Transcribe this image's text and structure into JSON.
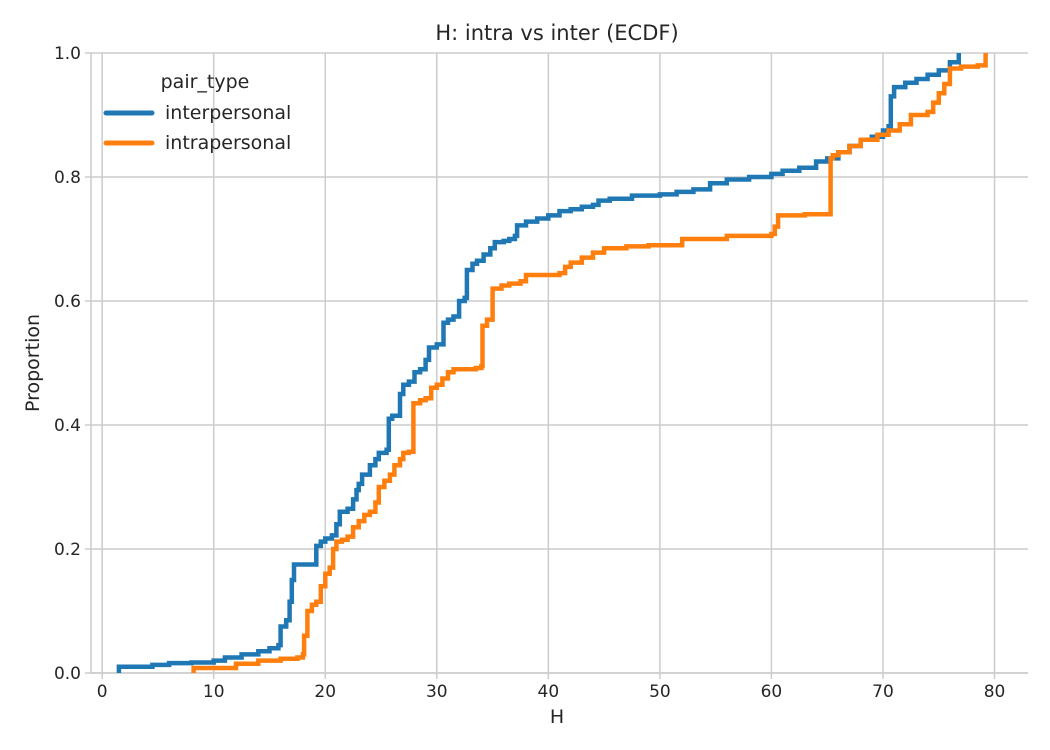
{
  "chart_data": {
    "type": "line",
    "subtype": "ecdf-step",
    "title": "H: intra vs inter (ECDF)",
    "xlabel": "H",
    "ylabel": "Proportion",
    "xlim": [
      -1,
      83
    ],
    "ylim": [
      0,
      1
    ],
    "xticks": [
      0,
      10,
      20,
      30,
      40,
      50,
      60,
      70,
      80
    ],
    "yticks": [
      0.0,
      0.2,
      0.4,
      0.6,
      0.8,
      1.0
    ],
    "xtick_labels": [
      "0",
      "10",
      "20",
      "30",
      "40",
      "50",
      "60",
      "70",
      "80"
    ],
    "ytick_labels": [
      "0.0",
      "0.2",
      "0.4",
      "0.6",
      "0.8",
      "1.0"
    ],
    "grid": true,
    "legend": {
      "title": "pair_type",
      "placement": "top-left"
    },
    "series": [
      {
        "name": "interpersonal",
        "color": "#1f77b4",
        "points": [
          [
            1.5,
            0.0
          ],
          [
            1.5,
            0.01
          ],
          [
            3.5,
            0.01
          ],
          [
            4.5,
            0.013
          ],
          [
            6,
            0.016
          ],
          [
            8,
            0.017
          ],
          [
            10,
            0.02
          ],
          [
            11,
            0.025
          ],
          [
            12.5,
            0.03
          ],
          [
            14,
            0.035
          ],
          [
            15,
            0.04
          ],
          [
            15.8,
            0.045
          ],
          [
            16.0,
            0.075
          ],
          [
            16.5,
            0.085
          ],
          [
            16.8,
            0.115
          ],
          [
            17.0,
            0.15
          ],
          [
            17.2,
            0.175
          ],
          [
            19.0,
            0.175
          ],
          [
            19.2,
            0.205
          ],
          [
            19.6,
            0.212
          ],
          [
            20.0,
            0.217
          ],
          [
            20.6,
            0.222
          ],
          [
            21.0,
            0.24
          ],
          [
            21.3,
            0.26
          ],
          [
            22.0,
            0.265
          ],
          [
            22.5,
            0.28
          ],
          [
            22.8,
            0.295
          ],
          [
            23.0,
            0.305
          ],
          [
            23.3,
            0.32
          ],
          [
            24.0,
            0.335
          ],
          [
            24.5,
            0.345
          ],
          [
            24.8,
            0.355
          ],
          [
            25.5,
            0.36
          ],
          [
            25.7,
            0.41
          ],
          [
            26.0,
            0.415
          ],
          [
            26.5,
            0.415
          ],
          [
            26.7,
            0.45
          ],
          [
            27.0,
            0.465
          ],
          [
            27.5,
            0.47
          ],
          [
            28.0,
            0.485
          ],
          [
            28.5,
            0.49
          ],
          [
            29.0,
            0.505
          ],
          [
            29.3,
            0.525
          ],
          [
            30.0,
            0.53
          ],
          [
            30.6,
            0.565
          ],
          [
            31.0,
            0.57
          ],
          [
            31.5,
            0.575
          ],
          [
            31.8,
            0.575
          ],
          [
            32.0,
            0.6
          ],
          [
            32.5,
            0.605
          ],
          [
            32.7,
            0.65
          ],
          [
            33.2,
            0.66
          ],
          [
            33.6,
            0.665
          ],
          [
            34.2,
            0.675
          ],
          [
            34.8,
            0.685
          ],
          [
            35.2,
            0.695
          ],
          [
            36.0,
            0.697
          ],
          [
            36.5,
            0.7
          ],
          [
            37.0,
            0.705
          ],
          [
            37.2,
            0.722
          ],
          [
            38.0,
            0.728
          ],
          [
            39.0,
            0.733
          ],
          [
            40.0,
            0.738
          ],
          [
            41.0,
            0.745
          ],
          [
            42.0,
            0.748
          ],
          [
            43.0,
            0.752
          ],
          [
            44.0,
            0.755
          ],
          [
            44.5,
            0.762
          ],
          [
            45.5,
            0.765
          ],
          [
            47.5,
            0.77
          ],
          [
            50.0,
            0.772
          ],
          [
            51.5,
            0.776
          ],
          [
            53.0,
            0.78
          ],
          [
            54.5,
            0.79
          ],
          [
            56.0,
            0.796
          ],
          [
            58.0,
            0.8
          ],
          [
            60.0,
            0.805
          ],
          [
            61.0,
            0.81
          ],
          [
            62.5,
            0.815
          ],
          [
            64.0,
            0.825
          ],
          [
            65.0,
            0.83
          ],
          [
            66.0,
            0.84
          ],
          [
            67.0,
            0.85
          ],
          [
            68.0,
            0.86
          ],
          [
            69.0,
            0.865
          ],
          [
            70.0,
            0.875
          ],
          [
            70.5,
            0.882
          ],
          [
            70.7,
            0.93
          ],
          [
            71.0,
            0.945
          ],
          [
            72.0,
            0.952
          ],
          [
            73.0,
            0.958
          ],
          [
            74.0,
            0.965
          ],
          [
            75.0,
            0.972
          ],
          [
            76.0,
            0.985
          ],
          [
            76.8,
            1.0
          ]
        ]
      },
      {
        "name": "intrapersonal",
        "color": "#ff7f0e",
        "points": [
          [
            8.2,
            0.0
          ],
          [
            8.2,
            0.008
          ],
          [
            11.5,
            0.008
          ],
          [
            12.0,
            0.015
          ],
          [
            14.0,
            0.02
          ],
          [
            16.0,
            0.023
          ],
          [
            17.5,
            0.025
          ],
          [
            18.0,
            0.03
          ],
          [
            18.1,
            0.06
          ],
          [
            18.4,
            0.1
          ],
          [
            18.8,
            0.11
          ],
          [
            19.2,
            0.115
          ],
          [
            19.6,
            0.14
          ],
          [
            20.0,
            0.16
          ],
          [
            20.4,
            0.17
          ],
          [
            20.7,
            0.2
          ],
          [
            21.0,
            0.212
          ],
          [
            21.5,
            0.215
          ],
          [
            22.0,
            0.22
          ],
          [
            22.5,
            0.235
          ],
          [
            23.0,
            0.245
          ],
          [
            23.5,
            0.255
          ],
          [
            24.0,
            0.26
          ],
          [
            24.5,
            0.275
          ],
          [
            24.8,
            0.3
          ],
          [
            25.3,
            0.31
          ],
          [
            25.8,
            0.32
          ],
          [
            26.2,
            0.335
          ],
          [
            26.7,
            0.345
          ],
          [
            27.0,
            0.355
          ],
          [
            27.5,
            0.357
          ],
          [
            27.9,
            0.435
          ],
          [
            28.5,
            0.44
          ],
          [
            29.0,
            0.443
          ],
          [
            29.5,
            0.46
          ],
          [
            30.0,
            0.465
          ],
          [
            30.5,
            0.475
          ],
          [
            31.0,
            0.485
          ],
          [
            31.5,
            0.49
          ],
          [
            32.5,
            0.49
          ],
          [
            33.5,
            0.492
          ],
          [
            34.0,
            0.495
          ],
          [
            34.1,
            0.56
          ],
          [
            34.5,
            0.57
          ],
          [
            35.0,
            0.62
          ],
          [
            35.8,
            0.625
          ],
          [
            36.5,
            0.628
          ],
          [
            37.5,
            0.632
          ],
          [
            38.0,
            0.642
          ],
          [
            41.0,
            0.645
          ],
          [
            41.5,
            0.655
          ],
          [
            42.0,
            0.662
          ],
          [
            43.0,
            0.67
          ],
          [
            44.0,
            0.678
          ],
          [
            45.0,
            0.685
          ],
          [
            47.0,
            0.688
          ],
          [
            49.0,
            0.69
          ],
          [
            52.0,
            0.7
          ],
          [
            56.0,
            0.705
          ],
          [
            60.0,
            0.708
          ],
          [
            60.3,
            0.72
          ],
          [
            60.6,
            0.738
          ],
          [
            63.0,
            0.74
          ],
          [
            65.2,
            0.74
          ],
          [
            65.3,
            0.83
          ],
          [
            65.5,
            0.835
          ],
          [
            66.0,
            0.84
          ],
          [
            67.0,
            0.85
          ],
          [
            68.0,
            0.86
          ],
          [
            69.5,
            0.868
          ],
          [
            70.5,
            0.875
          ],
          [
            71.5,
            0.885
          ],
          [
            72.5,
            0.9
          ],
          [
            74.0,
            0.905
          ],
          [
            74.5,
            0.92
          ],
          [
            75.0,
            0.935
          ],
          [
            75.5,
            0.95
          ],
          [
            76.0,
            0.975
          ],
          [
            77.0,
            0.978
          ],
          [
            78.5,
            0.98
          ],
          [
            79.2,
            1.0
          ]
        ]
      }
    ]
  }
}
